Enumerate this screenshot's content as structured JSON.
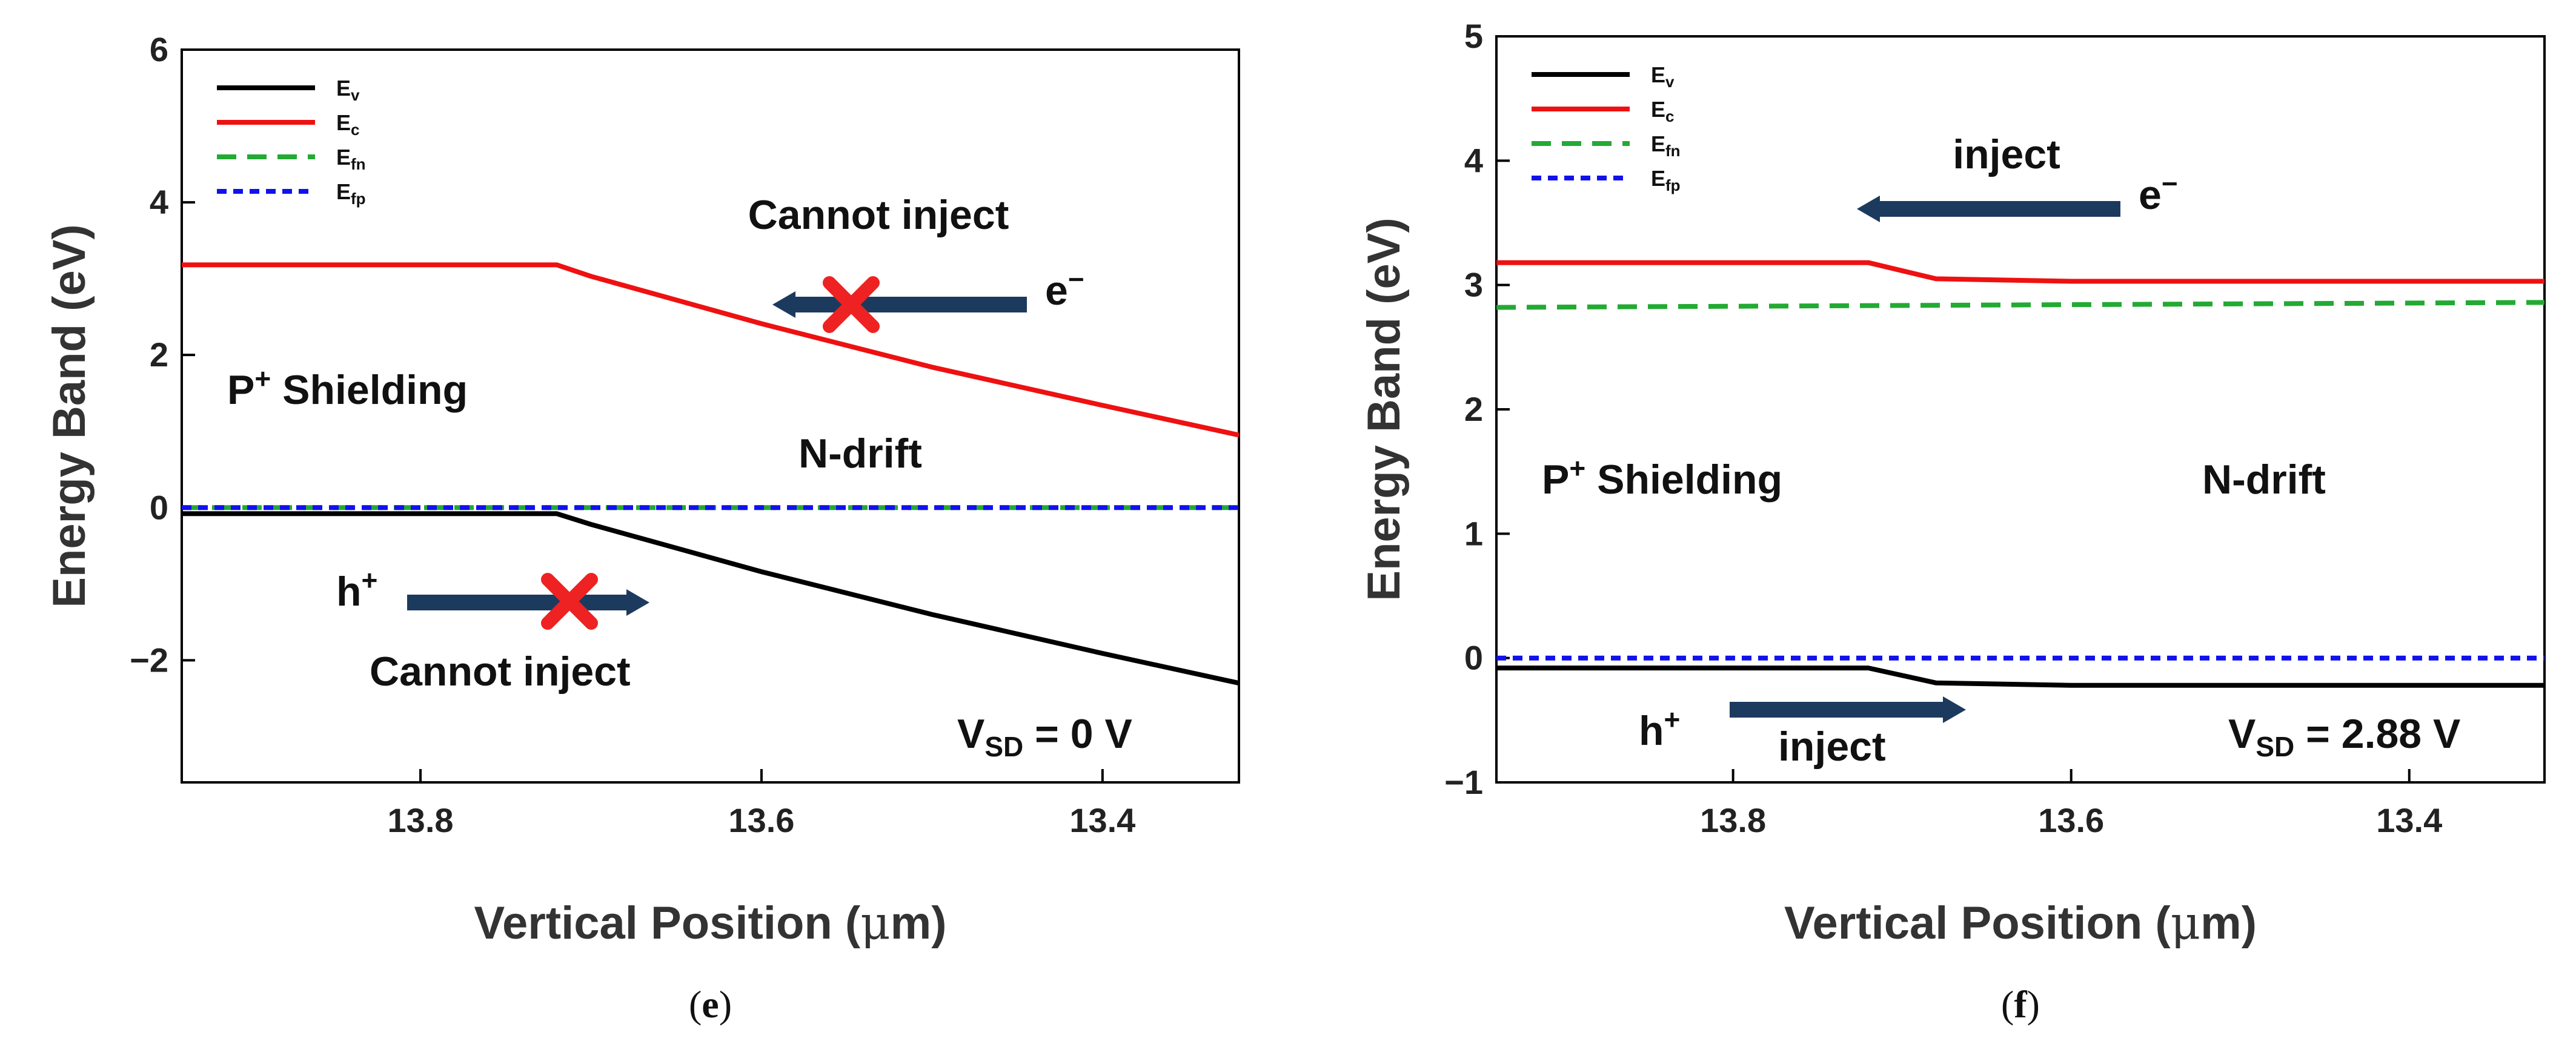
{
  "chart_data": [
    {
      "panel": "e",
      "type": "line",
      "caption_open": "(",
      "caption_letter": "e",
      "caption_close": ")",
      "xlabel_pre": "Vertical Position (",
      "xlabel_mu": "μ",
      "xlabel_post": "m)",
      "ylabel": "Energy Band (eV)",
      "xlim": [
        13.94,
        13.32
      ],
      "ylim": [
        -3.6,
        6
      ],
      "xticks": [
        "13.8",
        "13.6",
        "13.4"
      ],
      "yticks": [
        "6",
        "4",
        "2",
        "0",
        "−2"
      ],
      "series": [
        {
          "name": "Ev",
          "label_main": "E",
          "label_sub": "v",
          "color": "#000000",
          "dash": "",
          "x": [
            13.94,
            13.72,
            13.7,
            13.6,
            13.5,
            13.4,
            13.32
          ],
          "y": [
            -0.08,
            -0.08,
            -0.22,
            -0.84,
            -1.4,
            -1.91,
            -2.3
          ]
        },
        {
          "name": "Ec",
          "label_main": "E",
          "label_sub": "c",
          "color": "#ee1111",
          "dash": "",
          "x": [
            13.94,
            13.72,
            13.7,
            13.6,
            13.5,
            13.4,
            13.32
          ],
          "y": [
            3.18,
            3.18,
            3.03,
            2.41,
            1.84,
            1.34,
            0.95
          ]
        },
        {
          "name": "Efn",
          "label_main": "E",
          "label_sub": "fn",
          "color": "#22aa33",
          "dash": "32 18",
          "x": [
            13.94,
            13.32
          ],
          "y": [
            0.0,
            0.0
          ]
        },
        {
          "name": "Efp",
          "label_main": "E",
          "label_sub": "fp",
          "color": "#1111ee",
          "dash": "16 11",
          "x": [
            13.94,
            13.32
          ],
          "y": [
            0.0,
            0.0
          ]
        }
      ],
      "annotations": {
        "cannot_inject_top": "Cannot inject",
        "e_main": "e",
        "e_sup": "−",
        "p_main": "P",
        "p_sup": "+",
        "p_rest": " Shielding",
        "ndrift": "N-drift",
        "h_main": "h",
        "h_sup": "+",
        "cannot_inject_bottom": "Cannot inject",
        "v_main": "V",
        "v_sub": "SD",
        "v_rest": " = 0 V"
      },
      "arrow_color": "#1c3a5e",
      "cross_color": "#ee2222"
    },
    {
      "panel": "f",
      "type": "line",
      "caption_open": "(",
      "caption_letter": "f",
      "caption_close": ")",
      "xlabel_pre": "Vertical Position (",
      "xlabel_mu": "μ",
      "xlabel_post": "m)",
      "ylabel": "Energy Band (eV)",
      "xlim": [
        13.94,
        13.32
      ],
      "ylim": [
        -1,
        5
      ],
      "xticks": [
        "13.8",
        "13.6",
        "13.4"
      ],
      "yticks": [
        "5",
        "4",
        "3",
        "2",
        "1",
        "0",
        "−1"
      ],
      "series": [
        {
          "name": "Ev",
          "label_main": "E",
          "label_sub": "v",
          "color": "#000000",
          "dash": "",
          "x": [
            13.94,
            13.72,
            13.68,
            13.6,
            13.32
          ],
          "y": [
            -0.08,
            -0.08,
            -0.2,
            -0.22,
            -0.22
          ]
        },
        {
          "name": "Ec",
          "label_main": "E",
          "label_sub": "c",
          "color": "#ee1111",
          "dash": "",
          "x": [
            13.94,
            13.72,
            13.68,
            13.6,
            13.32
          ],
          "y": [
            3.18,
            3.18,
            3.05,
            3.03,
            3.03
          ]
        },
        {
          "name": "Efn",
          "label_main": "E",
          "label_sub": "fn",
          "color": "#22aa33",
          "dash": "32 18",
          "x": [
            13.94,
            13.32
          ],
          "y": [
            2.82,
            2.86
          ]
        },
        {
          "name": "Efp",
          "label_main": "E",
          "label_sub": "fp",
          "color": "#1111ee",
          "dash": "16 11",
          "x": [
            13.94,
            13.32
          ],
          "y": [
            0.0,
            0.0
          ]
        }
      ],
      "annotations": {
        "inject_top": "inject",
        "e_main": "e",
        "e_sup": "−",
        "p_main": "P",
        "p_sup": "+",
        "p_rest": " Shielding",
        "ndrift": "N-drift",
        "h_main": "h",
        "h_sup": "+",
        "inject_bottom": "inject",
        "v_main": "V",
        "v_sub": "SD",
        "v_rest": " = 2.88 V"
      },
      "arrow_color": "#1c3a5e"
    }
  ]
}
